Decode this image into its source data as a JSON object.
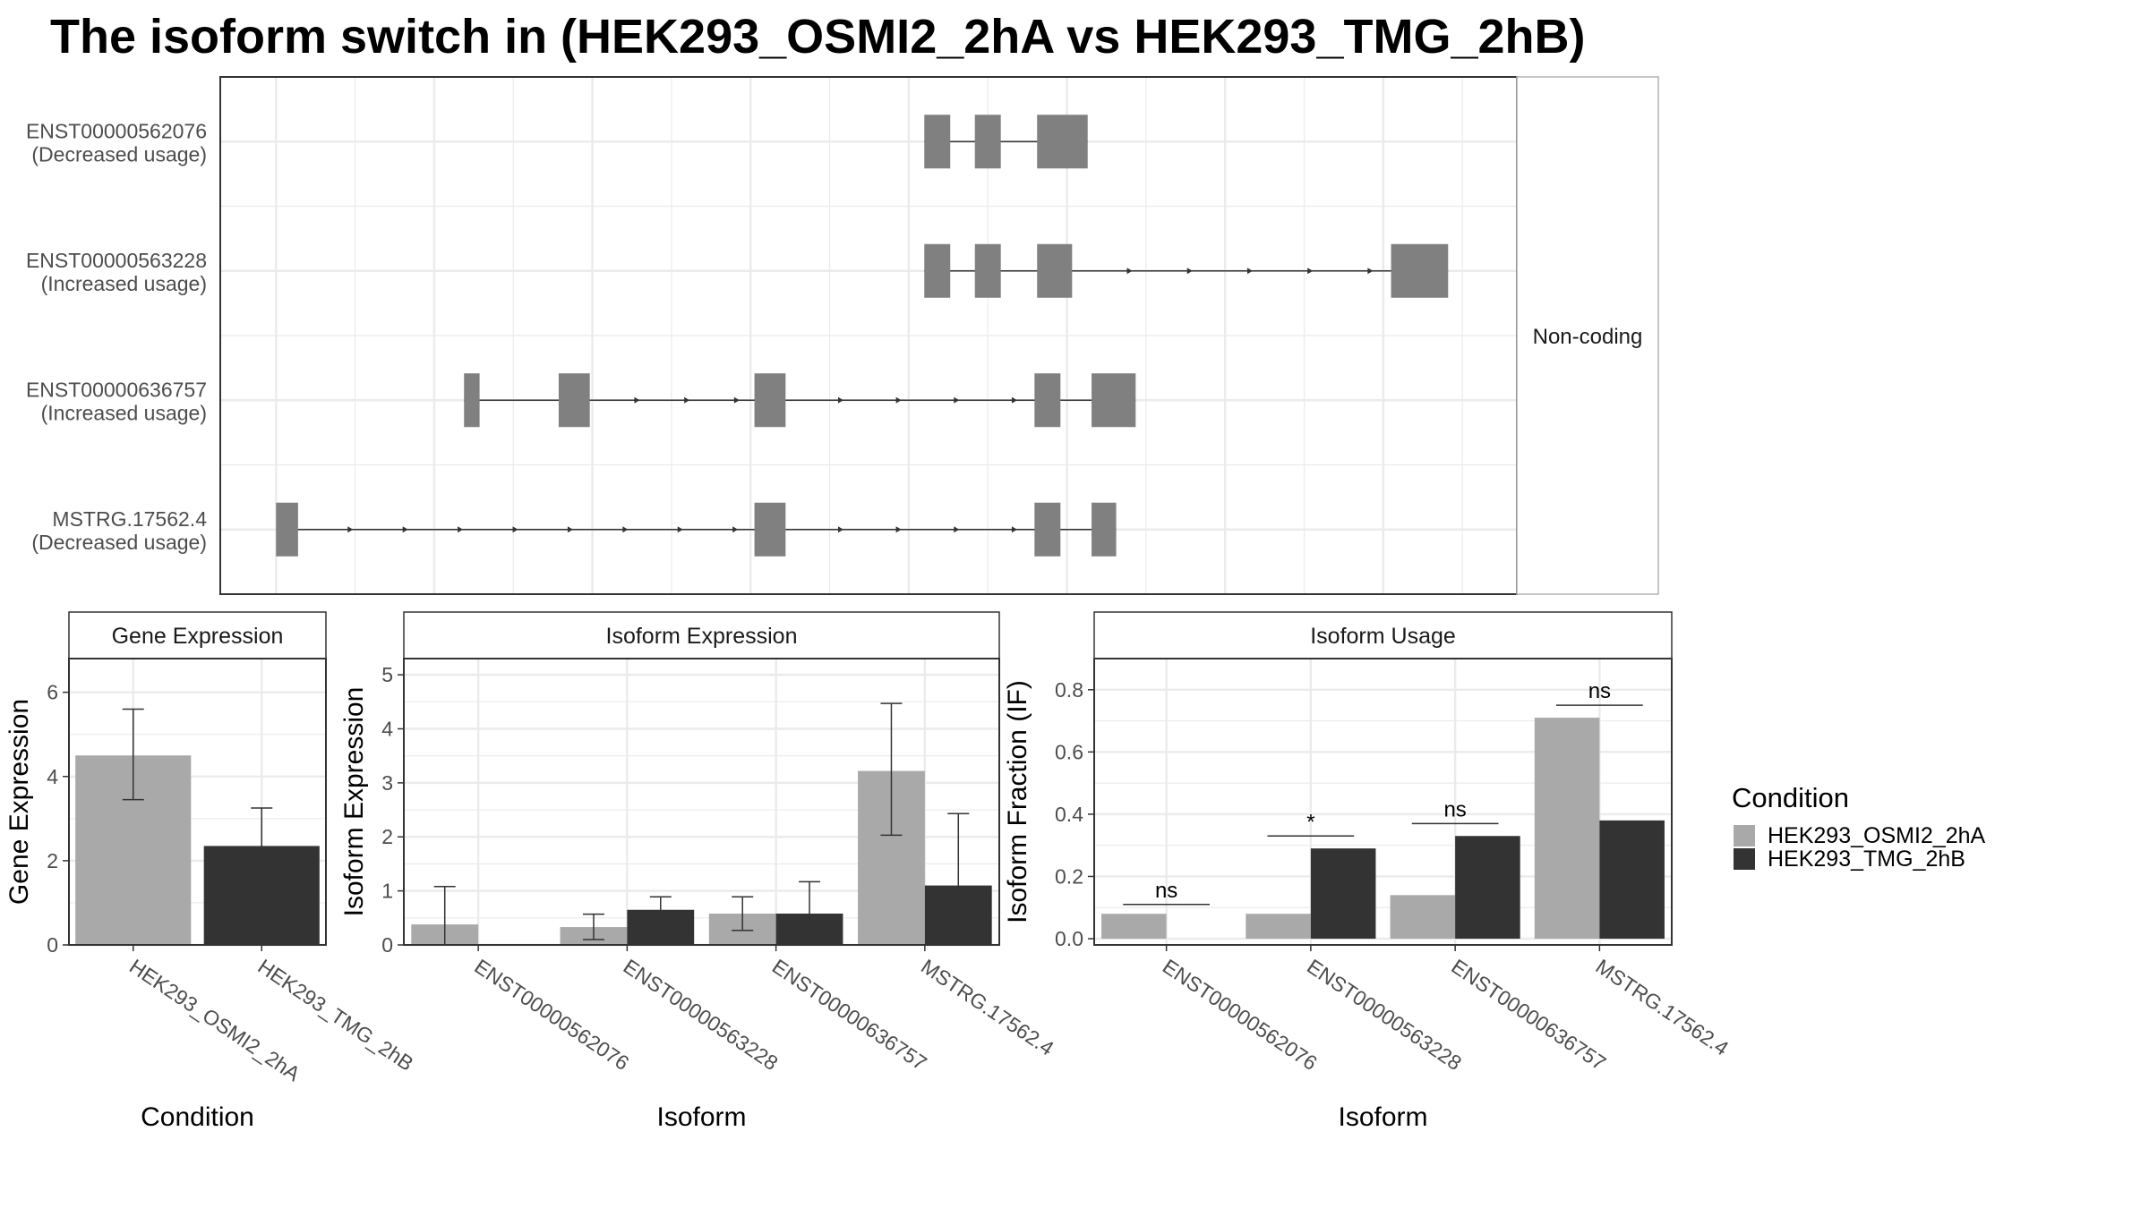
{
  "title": "The isoform switch in  (HEK293_OSMI2_2hA vs HEK293_TMG_2hB)",
  "colors": {
    "condition_a": "#a9a9a9",
    "condition_b": "#333333",
    "exon": "#808080",
    "grid": "#ebebeb",
    "panel_border": "#333333"
  },
  "structure_panel": {
    "facet_label": "Non-coding",
    "x_range": [
      0,
      100
    ],
    "isoforms": [
      {
        "id": "ENST00000562076",
        "usage": "(Decreased usage)",
        "exons": [
          [
            54.3,
            56.3
          ],
          [
            58.2,
            60.2
          ],
          [
            63.0,
            66.9
          ]
        ],
        "direction_arrows": false
      },
      {
        "id": "ENST00000563228",
        "usage": "(Increased usage)",
        "exons": [
          [
            54.3,
            56.3
          ],
          [
            58.2,
            60.2
          ],
          [
            63.0,
            65.7
          ],
          [
            90.3,
            94.7
          ]
        ],
        "direction_arrows": true
      },
      {
        "id": "ENST00000636757",
        "usage": "(Increased usage)",
        "exons": [
          [
            18.8,
            20.0
          ],
          [
            26.1,
            28.5
          ],
          [
            41.2,
            43.6
          ],
          [
            62.8,
            64.8
          ],
          [
            67.2,
            70.6
          ]
        ],
        "direction_arrows": true
      },
      {
        "id": "MSTRG.17562.4",
        "usage": "(Decreased usage)",
        "exons": [
          [
            4.3,
            6.0
          ],
          [
            41.2,
            43.6
          ],
          [
            62.8,
            64.8
          ],
          [
            67.2,
            69.1
          ]
        ],
        "direction_arrows": true
      }
    ]
  },
  "chart_data": [
    {
      "type": "bar",
      "title": "Gene Expression",
      "xlabel": "Condition",
      "ylabel": "Gene Expression",
      "categories": [
        "HEK293_OSMI2_2hA",
        "HEK293_TMG_2hB"
      ],
      "ylim": [
        0,
        6.8
      ],
      "yticks": [
        0,
        2,
        4,
        6
      ],
      "series": [
        {
          "values": [
            4.5,
            2.35
          ],
          "error_low": [
            3.45,
            1.45
          ],
          "error_high": [
            5.6,
            3.25
          ]
        }
      ]
    },
    {
      "type": "bar",
      "title": "Isoform Expression",
      "xlabel": "Isoform",
      "ylabel": "Isoform Expression",
      "categories": [
        "ENST00000562076",
        "ENST00000563228",
        "ENST00000636757",
        "MSTRG.17562.4"
      ],
      "ylim": [
        0,
        5.3
      ],
      "yticks": [
        0,
        1,
        2,
        3,
        4,
        5
      ],
      "series": [
        {
          "name": "HEK293_OSMI2_2hA",
          "values": [
            0.38,
            0.33,
            0.58,
            3.22
          ],
          "error_low": [
            0.0,
            0.1,
            0.27,
            2.03
          ],
          "error_high": [
            1.08,
            0.57,
            0.89,
            4.47
          ]
        },
        {
          "name": "HEK293_TMG_2hB",
          "values": [
            0.0,
            0.65,
            0.58,
            1.1
          ],
          "error_low": [
            0.0,
            0.42,
            0.0,
            0.0
          ],
          "error_high": [
            0.0,
            0.89,
            1.17,
            2.43
          ]
        }
      ]
    },
    {
      "type": "bar",
      "title": "Isoform Usage",
      "xlabel": "Isoform",
      "ylabel": "Isoform Fraction (IF)",
      "categories": [
        "ENST00000562076",
        "ENST00000563228",
        "ENST00000636757",
        "MSTRG.17562.4"
      ],
      "ylim": [
        -0.02,
        0.9
      ],
      "yticks": [
        0.0,
        0.2,
        0.4,
        0.6,
        0.8
      ],
      "ytick_labels": [
        "0.0",
        "0.2",
        "0.4",
        "0.6",
        "0.8"
      ],
      "series": [
        {
          "name": "HEK293_OSMI2_2hA",
          "values": [
            0.08,
            0.08,
            0.14,
            0.71
          ]
        },
        {
          "name": "HEK293_TMG_2hB",
          "values": [
            0.0,
            0.29,
            0.33,
            0.38
          ]
        }
      ],
      "significance": [
        "ns",
        "*",
        "ns",
        "ns"
      ],
      "significance_y": [
        0.11,
        0.33,
        0.37,
        0.75
      ]
    }
  ],
  "legend": {
    "title": "Condition",
    "entries": [
      "HEK293_OSMI2_2hA",
      "HEK293_TMG_2hB"
    ]
  }
}
